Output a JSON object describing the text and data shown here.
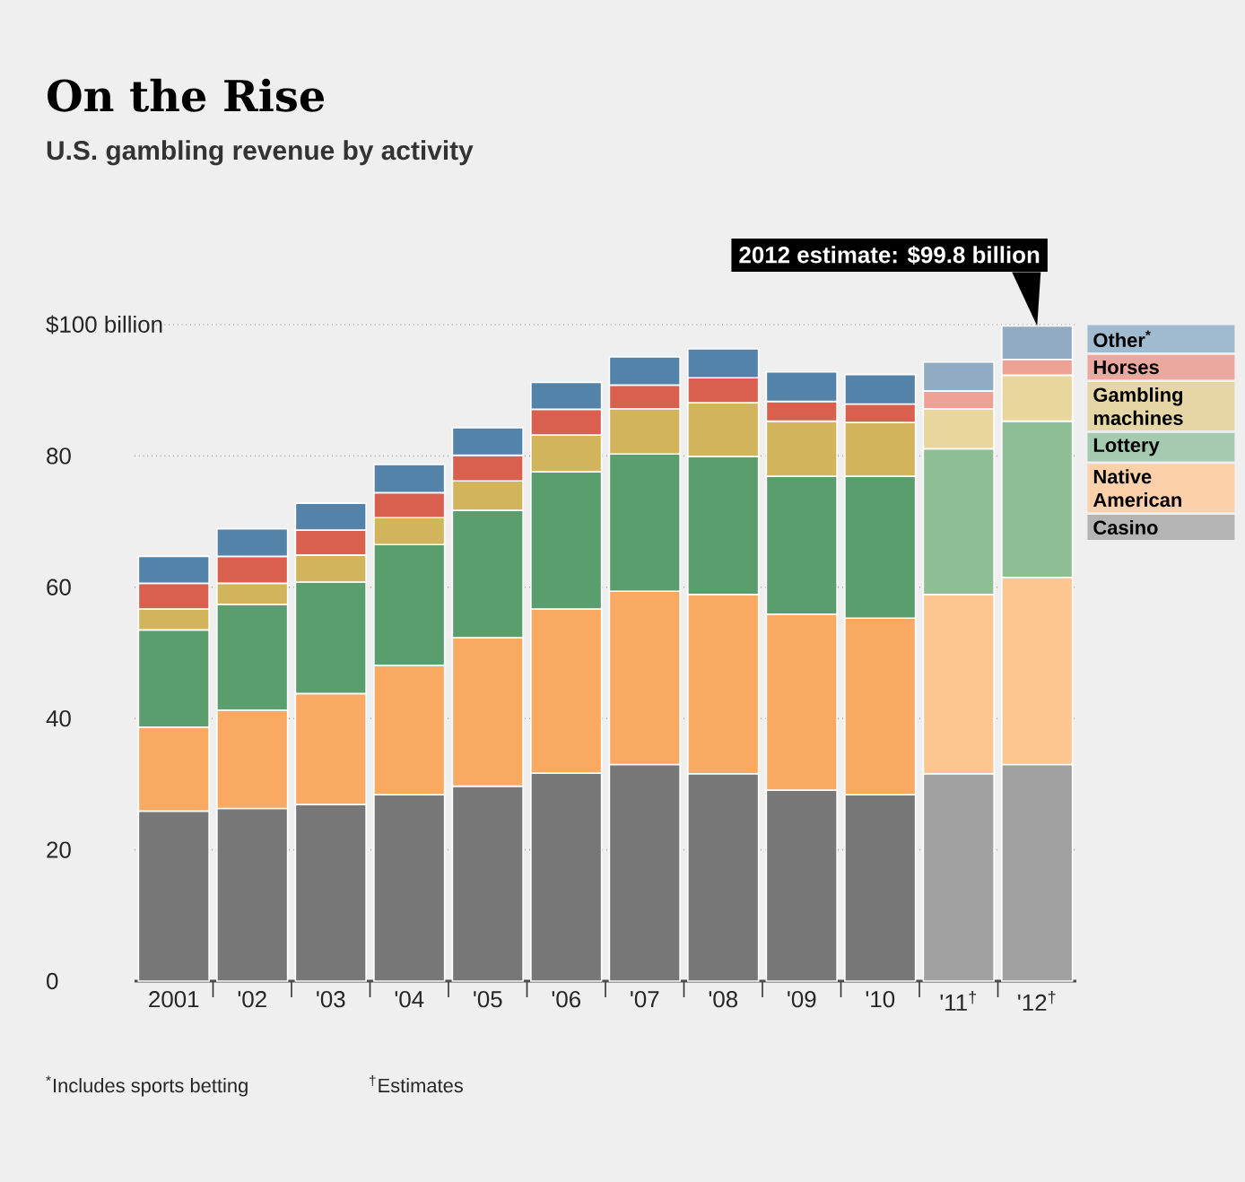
{
  "chart_data": {
    "type": "bar",
    "stacked": true,
    "title": "On the Rise",
    "subtitle": "U.S. gambling revenue by activity",
    "categories": [
      "2001",
      "'02",
      "'03",
      "'04",
      "'05",
      "'06",
      "'07",
      "'08",
      "'09",
      "'10",
      "'11$^{†}$",
      "'12$^{†}$"
    ],
    "series": [
      {
        "name": "Casino",
        "color": "#777777",
        "values": [
          25.9,
          26.3,
          26.9,
          28.4,
          29.7,
          31.7,
          33.0,
          31.6,
          29.1,
          28.4,
          31.6,
          33.0
        ],
        "colors": [
          "#777777",
          "#777777",
          "#777777",
          "#777777",
          "#777777",
          "#777777",
          "#777777",
          "#777777",
          "#777777",
          "#777777",
          "#a0a0a0",
          "#a0a0a0"
        ]
      },
      {
        "name": "Native American",
        "color": "#f9a962",
        "values": [
          12.8,
          15.0,
          16.9,
          19.7,
          22.6,
          25.0,
          26.4,
          27.3,
          26.8,
          26.9,
          27.3,
          28.5
        ],
        "colors": [
          "#f9a962",
          "#f9a962",
          "#f9a962",
          "#f9a962",
          "#f9a962",
          "#f9a962",
          "#f9a962",
          "#f9a962",
          "#f9a962",
          "#f9a962",
          "#fdc590",
          "#fdc590"
        ]
      },
      {
        "name": "Lottery",
        "color": "#5b9e6e",
        "values": [
          14.8,
          16.1,
          17.0,
          18.4,
          19.4,
          20.9,
          20.9,
          21.0,
          21.0,
          21.6,
          22.2,
          23.8
        ],
        "colors": [
          "#5b9e6e",
          "#5b9e6e",
          "#5b9e6e",
          "#5b9e6e",
          "#5b9e6e",
          "#5b9e6e",
          "#5b9e6e",
          "#5b9e6e",
          "#5b9e6e",
          "#5b9e6e",
          "#8fbe94",
          "#8fbe94"
        ]
      },
      {
        "name": "Gambling machines",
        "color": "#d2b45c",
        "values": [
          3.2,
          3.2,
          4.1,
          4.1,
          4.5,
          5.6,
          6.9,
          8.2,
          8.4,
          8.2,
          6.1,
          7.0
        ],
        "colors": [
          "#d2b45c",
          "#d2b45c",
          "#d2b45c",
          "#d2b45c",
          "#d2b45c",
          "#d2b45c",
          "#d2b45c",
          "#d2b45c",
          "#d2b45c",
          "#d2b45c",
          "#e8d69c",
          "#e8d69c"
        ]
      },
      {
        "name": "Horses",
        "color": "#d9604f",
        "values": [
          3.9,
          4.1,
          3.8,
          3.8,
          3.9,
          3.9,
          3.6,
          3.8,
          3.0,
          2.8,
          2.7,
          2.4
        ],
        "colors": [
          "#d9604f",
          "#d9604f",
          "#d9604f",
          "#d9604f",
          "#d9604f",
          "#d9604f",
          "#d9604f",
          "#d9604f",
          "#d9604f",
          "#d9604f",
          "#eda295",
          "#eda295"
        ]
      },
      {
        "name": "Other$^{*}$",
        "color": "#5383a8",
        "values": [
          4.1,
          4.2,
          4.1,
          4.3,
          4.2,
          4.1,
          4.3,
          4.4,
          4.5,
          4.5,
          4.4,
          5.1
        ],
        "colors": [
          "#5383a8",
          "#5383a8",
          "#5383a8",
          "#5383a8",
          "#5383a8",
          "#5383a8",
          "#5383a8",
          "#5383a8",
          "#5383a8",
          "#5383a8",
          "#91abc3",
          "#91abc3"
        ]
      }
    ],
    "ylim": [
      0,
      100
    ],
    "yticks": [
      0,
      20,
      40,
      60,
      80,
      {
        "value": 100,
        "label": "$100 billion"
      }
    ],
    "grid": "y",
    "legend": "right",
    "annotations": [
      {
        "text": "2012 estimate: $99.8 billion",
        "x": "'12$^{†}$",
        "y": 99.8
      },
      "$^{*}$Includes sports betting",
      "$^{†}$Estimates"
    ]
  }
}
